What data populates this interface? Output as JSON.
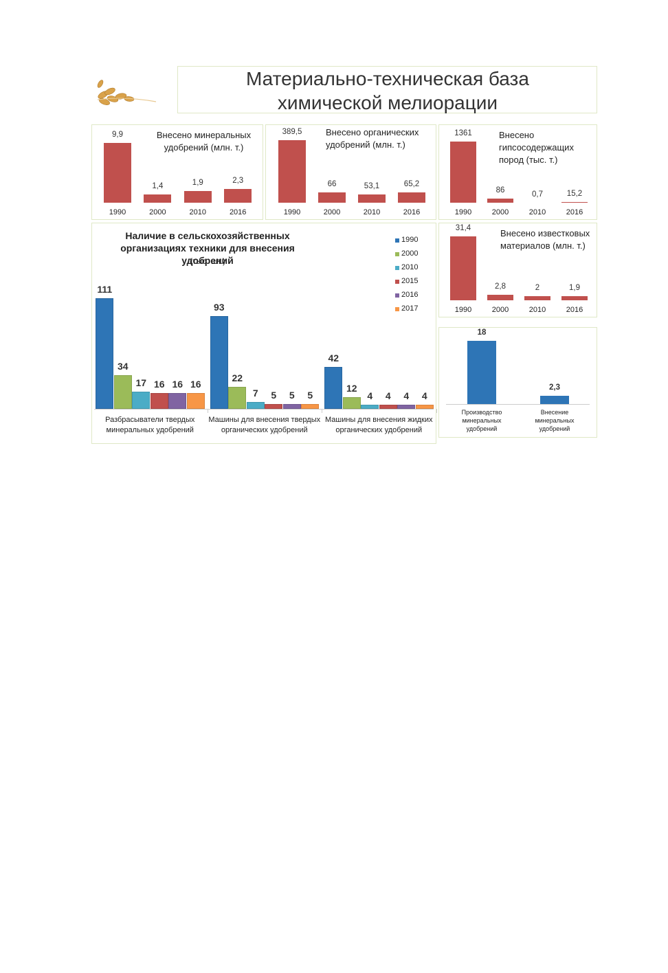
{
  "title": "Материально-техническая база химической мелиорации",
  "chart_data": [
    {
      "type": "bar",
      "title": "Внесено минеральных удобрений (млн. т.)",
      "categories": [
        "1990",
        "2000",
        "2010",
        "2016"
      ],
      "values": [
        9.9,
        1.4,
        1.9,
        2.3
      ],
      "value_labels": [
        "9,9",
        "1,4",
        "1,9",
        "2,3"
      ],
      "color": "#c0504d"
    },
    {
      "type": "bar",
      "title": "Внесено органических удобрений (млн. т.)",
      "categories": [
        "1990",
        "2000",
        "2010",
        "2016"
      ],
      "values": [
        389.5,
        66,
        53.1,
        65.2
      ],
      "value_labels": [
        "389,5",
        "66",
        "53,1",
        "65,2"
      ],
      "color": "#c0504d"
    },
    {
      "type": "bar",
      "title": "Внесено гипсосодержащих пород (тыс. т.)",
      "categories": [
        "1990",
        "2000",
        "2010",
        "2016"
      ],
      "values": [
        1361,
        86,
        0.7,
        15.2
      ],
      "value_labels": [
        "1361",
        "86",
        "0,7",
        "15,2"
      ],
      "color": "#c0504d"
    },
    {
      "type": "grouped_bar",
      "title": "Наличие в сельскохозяйственных организациях техники для внесения удобрений",
      "subtitle": "(тыс. шт.)",
      "categories": [
        "Разбрасыватели твердых минеральных удобрений",
        "Машины для внесения твердых органических удобрений",
        "Машины для внесения жидких органических удобрений"
      ],
      "series": [
        {
          "name": "1990",
          "color": "#2e75b6",
          "values": [
            111,
            93,
            42
          ]
        },
        {
          "name": "2000",
          "color": "#9bbb59",
          "values": [
            34,
            22,
            12
          ]
        },
        {
          "name": "2010",
          "color": "#4bacc6",
          "values": [
            17,
            7,
            4
          ]
        },
        {
          "name": "2015",
          "color": "#c0504d",
          "values": [
            16,
            5,
            4
          ]
        },
        {
          "name": "2016",
          "color": "#8064a2",
          "values": [
            16,
            5,
            4
          ]
        },
        {
          "name": "2017",
          "color": "#f79646",
          "values": [
            16,
            5,
            4
          ]
        }
      ]
    },
    {
      "type": "bar",
      "title": "Внесено известковых материалов (млн. т.)",
      "categories": [
        "1990",
        "2000",
        "2010",
        "2016"
      ],
      "values": [
        31.4,
        2.8,
        2,
        1.9
      ],
      "value_labels": [
        "31,4",
        "2,8",
        "2",
        "1,9"
      ],
      "color": "#c0504d"
    },
    {
      "type": "bar",
      "categories": [
        "Производство минеральных удобрений",
        "Внесение минеральных удобрений"
      ],
      "values": [
        18,
        2.3
      ],
      "value_labels": [
        "18",
        "2,3"
      ],
      "color": "#2e75b6"
    }
  ]
}
